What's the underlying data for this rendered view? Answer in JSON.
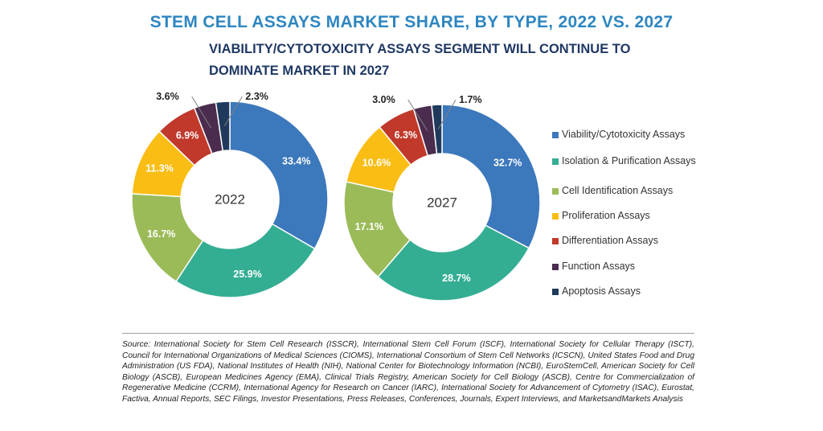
{
  "chart_data": [
    {
      "type": "pie",
      "title": "STEM CELL ASSAYS MARKET SHARE, BY TYPE, 2022 VS. 2027",
      "subtitle": "VIABILITY/CYTOTOXICITY ASSAYS SEGMENT WILL CONTINUE TO DOMINATE MARKET IN 2027",
      "center_label": "2022",
      "donut": true,
      "categories": [
        "Viability/Cytotoxicity Assays",
        "Isolation & Purification Assays",
        "Cell Identification Assays",
        "Proliferation Assays",
        "Differentiation Assays",
        "Function Assays",
        "Apoptosis Assays"
      ],
      "values": [
        33.4,
        25.9,
        16.7,
        11.3,
        6.9,
        3.6,
        2.3
      ],
      "labels": [
        "33.4%",
        "25.9%",
        "16.7%",
        "11.3%",
        "6.9%",
        "3.6%",
        "2.3%"
      ],
      "legend_position": "right"
    },
    {
      "type": "pie",
      "center_label": "2027",
      "donut": true,
      "categories": [
        "Viability/Cytotoxicity Assays",
        "Isolation & Purification Assays",
        "Cell Identification Assays",
        "Proliferation Assays",
        "Differentiation Assays",
        "Function Assays",
        "Apoptosis Assays"
      ],
      "values": [
        32.7,
        28.7,
        17.1,
        10.6,
        6.3,
        3.0,
        1.7
      ],
      "labels": [
        "32.7%",
        "28.7%",
        "17.1%",
        "10.6%",
        "6.3%",
        "3.0%",
        "1.7%"
      ],
      "legend_position": "right"
    }
  ],
  "legend": [
    {
      "label": "Viability/Cytotoxicity Assays",
      "color": "#3c78bc"
    },
    {
      "label": "Isolation & Purification Assays",
      "color": "#34ae93"
    },
    {
      "label": "Cell Identification Assays",
      "color": "#9bbb59"
    },
    {
      "label": "Proliferation Assays",
      "color": "#f9bd14"
    },
    {
      "label": "Differentiation Assays",
      "color": "#c0392b"
    },
    {
      "label": "Function Assays",
      "color": "#4b2c4f"
    },
    {
      "label": "Apoptosis Assays",
      "color": "#1f3a5c"
    }
  ],
  "colors": [
    "#3c78bc",
    "#34ae93",
    "#9bbb59",
    "#f9bd14",
    "#c0392b",
    "#4b2c4f",
    "#1f3a5c"
  ],
  "source": "Source: International Society for Stem Cell Research (ISSCR), International Stem Cell Forum (ISCF), International Society for Cellular Therapy (ISCT), Council for International Organizations of Medical Sciences (CIOMS), International Consortium of Stem Cell Networks (ICSCN), United States Food and Drug Administration (US FDA), National Institutes of Health (NIH), National Center for Biotechnology Information (NCBI), EuroStemCell, American Society for Cell Biology (ASCB), European Medicines Agency (EMA), Clinical Trials Registry, American Society for Cell Biology (ASCB), Centre for Commercialization of Regenerative Medicine (CCRM), International Agency for Research on Cancer (IARC), International Society for Advancement of Cytometry (ISAC), Eurostat, Factiva, Annual Reports, SEC Filings, Investor Presentations, Press Releases, Conferences, Journals, Expert Interviews, and MarketsandMarkets Analysis"
}
